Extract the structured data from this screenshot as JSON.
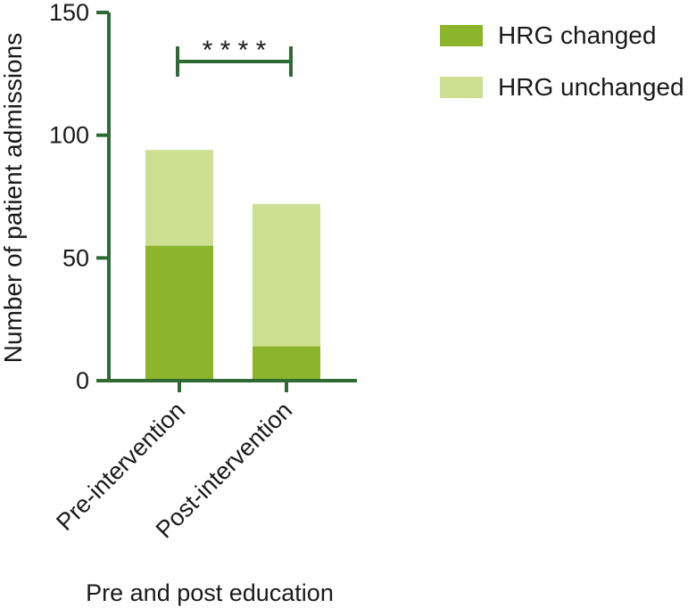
{
  "chart_data": {
    "type": "bar",
    "stacked": true,
    "categories": [
      "Pre-intervention",
      "Post-intervention"
    ],
    "series": [
      {
        "name": "HRG changed",
        "values": [
          55,
          14
        ],
        "color": "#8db52b"
      },
      {
        "name": "HRG unchanged",
        "values": [
          39,
          58
        ],
        "color": "#cddf90"
      }
    ],
    "xlabel": "Pre and post education",
    "ylabel": "Number of patient admissions",
    "ylim": [
      0,
      150
    ],
    "yticks": [
      0,
      50,
      100,
      150
    ],
    "significance": {
      "between": [
        "Pre-intervention",
        "Post-intervention"
      ],
      "label": "* * * *"
    },
    "legend_position": "top-right",
    "axis_color": "#2e6b34",
    "grid": false
  }
}
